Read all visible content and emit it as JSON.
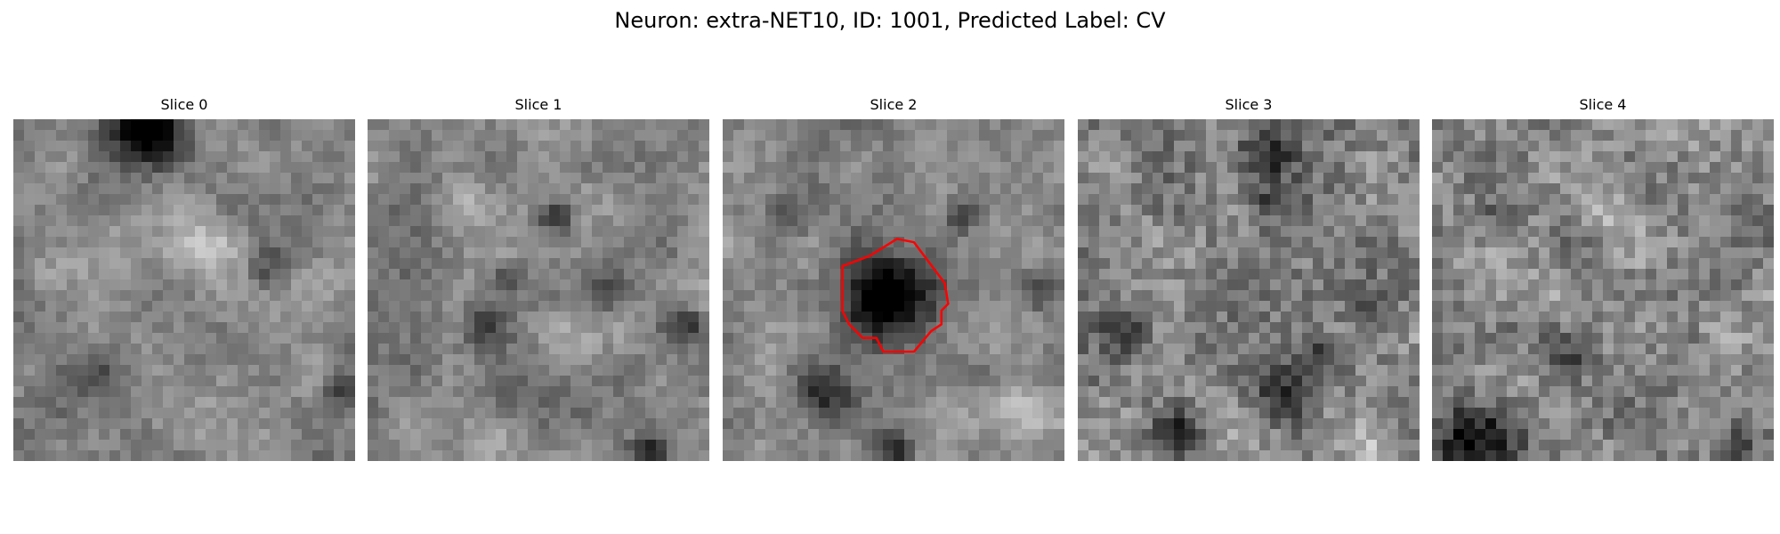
{
  "figure": {
    "title": "Neuron: extra-NET10, ID: 1001, Predicted Label: CV"
  },
  "slices": [
    {
      "label": "Slice 0",
      "seed": 11,
      "blobs": [
        [
          0.4,
          0.02,
          0.11,
          -0.65
        ],
        [
          0.25,
          0.75,
          0.07,
          -0.18
        ],
        [
          0.75,
          0.45,
          0.06,
          -0.2
        ],
        [
          0.96,
          0.8,
          0.06,
          -0.25
        ],
        [
          0.55,
          0.35,
          0.09,
          0.18
        ],
        [
          0.1,
          0.45,
          0.08,
          0.15
        ],
        [
          0.5,
          0.9,
          0.1,
          0.12
        ]
      ]
    },
    {
      "label": "Slice 1",
      "seed": 23,
      "blobs": [
        [
          0.55,
          0.28,
          0.05,
          -0.45
        ],
        [
          0.4,
          0.47,
          0.05,
          -0.35
        ],
        [
          0.35,
          0.6,
          0.07,
          -0.25
        ],
        [
          0.7,
          0.5,
          0.06,
          -0.3
        ],
        [
          0.4,
          0.8,
          0.06,
          -0.25
        ],
        [
          0.93,
          0.6,
          0.05,
          -0.3
        ],
        [
          0.83,
          0.97,
          0.05,
          -0.5
        ],
        [
          0.3,
          0.25,
          0.08,
          0.18
        ],
        [
          0.6,
          0.65,
          0.08,
          0.12
        ]
      ]
    },
    {
      "label": "Slice 2",
      "seed": 37,
      "blobs": [
        [
          0.47,
          0.52,
          0.12,
          -0.75
        ],
        [
          0.7,
          0.28,
          0.05,
          -0.35
        ],
        [
          0.2,
          0.3,
          0.06,
          -0.2
        ],
        [
          0.3,
          0.8,
          0.08,
          -0.35
        ],
        [
          0.5,
          0.97,
          0.06,
          -0.3
        ],
        [
          0.93,
          0.5,
          0.05,
          -0.3
        ],
        [
          0.55,
          0.08,
          0.1,
          0.1
        ],
        [
          0.88,
          0.85,
          0.08,
          0.18
        ]
      ]
    },
    {
      "label": "Slice 3",
      "seed": 53,
      "blobs": [
        [
          0.55,
          0.1,
          0.08,
          -0.35
        ],
        [
          0.55,
          0.25,
          0.06,
          -0.25
        ],
        [
          0.15,
          0.62,
          0.07,
          -0.3
        ],
        [
          0.3,
          0.92,
          0.07,
          -0.4
        ],
        [
          0.6,
          0.8,
          0.08,
          -0.4
        ],
        [
          0.85,
          0.55,
          0.06,
          -0.3
        ],
        [
          0.7,
          0.7,
          0.07,
          -0.3
        ],
        [
          0.85,
          0.95,
          0.08,
          0.15
        ]
      ]
    },
    {
      "label": "Slice 4",
      "seed": 71,
      "blobs": [
        [
          0.12,
          0.95,
          0.12,
          -0.5
        ],
        [
          0.4,
          0.7,
          0.08,
          -0.3
        ],
        [
          0.92,
          0.25,
          0.05,
          -0.3
        ],
        [
          0.2,
          0.3,
          0.07,
          -0.25
        ],
        [
          0.9,
          0.95,
          0.08,
          -0.3
        ],
        [
          0.55,
          0.35,
          0.1,
          0.15
        ],
        [
          0.85,
          0.65,
          0.08,
          0.15
        ]
      ]
    }
  ],
  "contour": {
    "slice_index": 2,
    "color": "#ff0000",
    "points": [
      [
        0.43,
        0.4
      ],
      [
        0.51,
        0.35
      ],
      [
        0.56,
        0.36
      ],
      [
        0.65,
        0.48
      ],
      [
        0.66,
        0.54
      ],
      [
        0.64,
        0.56
      ],
      [
        0.64,
        0.6
      ],
      [
        0.61,
        0.62
      ],
      [
        0.56,
        0.68
      ],
      [
        0.47,
        0.68
      ],
      [
        0.45,
        0.64
      ],
      [
        0.41,
        0.64
      ],
      [
        0.37,
        0.6
      ],
      [
        0.35,
        0.56
      ],
      [
        0.35,
        0.43
      ]
    ]
  }
}
